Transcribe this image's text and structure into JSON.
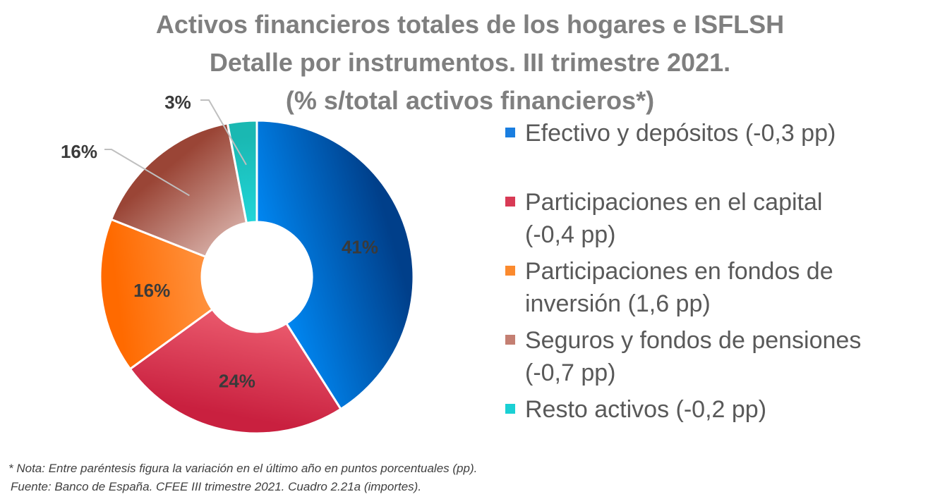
{
  "chart_data": {
    "type": "pie",
    "variant": "donut",
    "title_lines": [
      "Activos financieros totales de los hogares e ISFLSH",
      "Detalle por instrumentos. III trimestre 2021.",
      "(% s/total activos financieros*)"
    ],
    "slices": [
      {
        "name": "Efectivo y depósitos  (-0,3 pp)",
        "value": 41,
        "label": "41%",
        "color": "#1a7ee0",
        "grad_start": "#003f8a",
        "grad_end": "#0090ff"
      },
      {
        "name": "Participaciones en el capital\n(-0,4 pp)",
        "value": 24,
        "label": "24%",
        "color": "#d83a55",
        "grad_start": "#c9203f",
        "grad_end": "#f7707f"
      },
      {
        "name": "Participaciones en fondos de\ninversión  (1,6 pp)",
        "value": 16,
        "label": "16%",
        "color": "#fb8a2e",
        "grad_start": "#ff6a00",
        "grad_end": "#ffa860"
      },
      {
        "name": "Seguros y fondos de pensiones\n(-0,7 pp)",
        "value": 16,
        "label": "16%",
        "color": "#c47f72",
        "grad_start": "#9a4536",
        "grad_end": "#f2ddd8"
      },
      {
        "name": "Resto activos  (-0,2 pp)",
        "value": 3,
        "label": "3%",
        "color": "#1ad0d4",
        "grad_start": "#1ab8b2",
        "grad_end": "#25e8f0"
      }
    ],
    "legend_position": "right",
    "data_label_color": "#3a3a3a"
  },
  "notes": {
    "line1": "* Nota: Entre paréntesis figura la variación en el último año en puntos porcentuales (pp).",
    "line2": "Fuente: Banco de España. CFEE III trimestre 2021. Cuadro 2.21a (importes)."
  }
}
